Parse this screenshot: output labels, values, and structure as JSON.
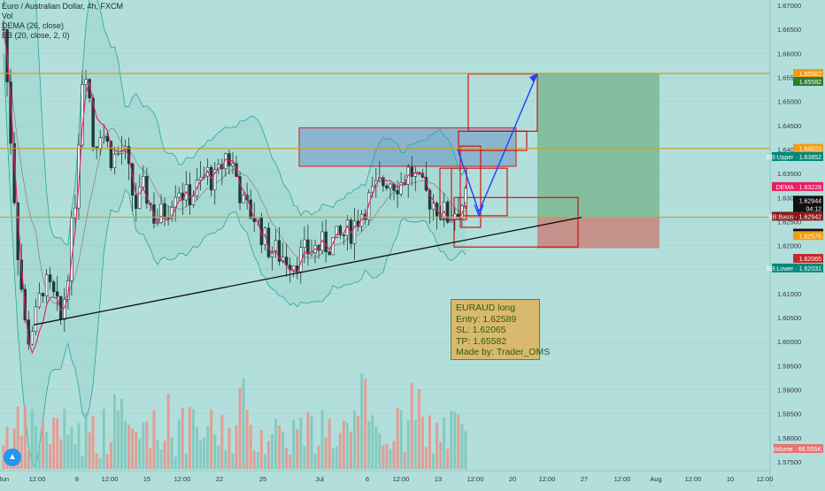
{
  "header": {
    "symbol": "Euro / Australian Dollar, 4h, FXCM",
    "indicators": [
      "Vol",
      "DEMA (26, close)",
      "BB (20, close, 2, 0)"
    ]
  },
  "annotation": {
    "lines": [
      "EURAUD long",
      "Entry: 1.62589",
      "SL: 1.62065",
      "TP: 1.65582",
      "Made by: Trader_OMS"
    ]
  },
  "colors": {
    "background": "#b2dfdb",
    "level_line": "#c9a227",
    "candle": "#1f3a36",
    "bb_band": "#26a69a",
    "dema": "#e91e63",
    "zone_border": "#d50000",
    "supply_zone_fill": "#7fa8cc",
    "target_fill": "#7ab893",
    "stop_fill": "#c7857d",
    "arrow": "#1e40ff",
    "vol_up": "#7ec8bd",
    "vol_down": "#e8968d"
  },
  "chart_data": {
    "type": "candlestick",
    "symbol": "EURAUD",
    "timeframe": "4h",
    "ylim": [
      1.5725,
      1.6725
    ],
    "y_ticks": [
      1.575,
      1.58,
      1.585,
      1.59,
      1.595,
      1.6,
      1.605,
      1.61,
      1.615,
      1.62,
      1.625,
      1.63,
      1.635,
      1.64,
      1.645,
      1.65,
      1.655,
      1.66,
      1.665,
      1.67
    ],
    "x_ticks": [
      {
        "label": "Jun",
        "px": 4
      },
      {
        "label": "12:00",
        "px": 42
      },
      {
        "label": "8",
        "px": 87
      },
      {
        "label": "12:00",
        "px": 124
      },
      {
        "label": "15",
        "px": 166
      },
      {
        "label": "12:00",
        "px": 206
      },
      {
        "label": "22",
        "px": 248
      },
      {
        "label": "25",
        "px": 297
      },
      {
        "label": "Jul",
        "px": 361
      },
      {
        "label": "6",
        "px": 415
      },
      {
        "label": "12:00",
        "px": 453
      },
      {
        "label": "13",
        "px": 495
      },
      {
        "label": "12:00",
        "px": 537
      },
      {
        "label": "20",
        "px": 579
      },
      {
        "label": "12:00",
        "px": 618
      },
      {
        "label": "27",
        "px": 660
      },
      {
        "label": "12:00",
        "px": 703
      },
      {
        "label": "Aug",
        "px": 741
      },
      {
        "label": "12:00",
        "px": 783
      },
      {
        "label": "10",
        "px": 825
      },
      {
        "label": "12:00",
        "px": 864
      }
    ],
    "price_path": [
      [
        0,
        1.665
      ],
      [
        0.012,
        1.648
      ],
      [
        0.03,
        1.62
      ],
      [
        0.05,
        1.6
      ],
      [
        0.07,
        1.605
      ],
      [
        0.085,
        1.612
      ],
      [
        0.105,
        1.61
      ],
      [
        0.125,
        1.604
      ],
      [
        0.14,
        1.616
      ],
      [
        0.155,
        1.63
      ],
      [
        0.17,
        1.655
      ],
      [
        0.18,
        1.658
      ],
      [
        0.195,
        1.64
      ],
      [
        0.21,
        1.645
      ],
      [
        0.235,
        1.638
      ],
      [
        0.26,
        1.64
      ],
      [
        0.285,
        1.628
      ],
      [
        0.305,
        1.632
      ],
      [
        0.33,
        1.625
      ],
      [
        0.355,
        1.628
      ],
      [
        0.375,
        1.633
      ],
      [
        0.395,
        1.63
      ],
      [
        0.42,
        1.632
      ],
      [
        0.44,
        1.635
      ],
      [
        0.46,
        1.633
      ],
      [
        0.48,
        1.639
      ],
      [
        0.5,
        1.636
      ],
      [
        0.52,
        1.628
      ],
      [
        0.545,
        1.626
      ],
      [
        0.57,
        1.62
      ],
      [
        0.6,
        1.618
      ],
      [
        0.63,
        1.617
      ],
      [
        0.66,
        1.619
      ],
      [
        0.69,
        1.62
      ],
      [
        0.72,
        1.621
      ],
      [
        0.75,
        1.623
      ],
      [
        0.78,
        1.628
      ],
      [
        0.81,
        1.632
      ],
      [
        0.83,
        1.634
      ],
      [
        0.86,
        1.633
      ],
      [
        0.88,
        1.636
      ],
      [
        0.9,
        1.632
      ],
      [
        0.93,
        1.629
      ],
      [
        0.96,
        1.626
      ],
      [
        1.0,
        1.6294
      ]
    ],
    "levels": [
      {
        "name": "tp-level",
        "value": 1.65582
      },
      {
        "name": "resistance-level",
        "value": 1.64023
      },
      {
        "name": "entry-level",
        "value": 1.62589
      }
    ],
    "trendline": {
      "from": [
        "Jun 4",
        1.6035
      ],
      "to": [
        "Jul 16",
        1.62589
      ]
    },
    "projection_arrow": [
      [
        1.64,
        1.6385
      ],
      [
        1.627,
        1.6263
      ],
      [
        1.6558,
        1.6558
      ]
    ],
    "trade": {
      "direction": "long",
      "entry": 1.62589,
      "stop_loss": 1.62065,
      "take_profit": 1.65582
    },
    "price_labels": [
      {
        "text": "1.65582",
        "value": 1.65582,
        "color": "#f39c12"
      },
      {
        "text": "1.65582",
        "value": 1.65582,
        "color": "#2e7d32",
        "offset": 9
      },
      {
        "text": "1.64023",
        "value": 1.64023,
        "color": "#f39c12"
      },
      {
        "text": "BB:Upper · 1.63852",
        "value": 1.63852,
        "color": "#00897b"
      },
      {
        "text": "DEMA · 1.63228",
        "value": 1.63228,
        "color": "#e91e63"
      },
      {
        "text": "1.62944",
        "value": 1.62944,
        "color": "#111111"
      },
      {
        "text": "04:12",
        "value": 1.62944,
        "color": "#111111",
        "offset": 9
      },
      {
        "text": "BB:Basis · 1.62942",
        "value": 1.62942,
        "color": "#8b1a1a",
        "offset": 18
      },
      {
        "text": "1.62589",
        "value": 1.62589,
        "color": "#111111",
        "offset": 18
      },
      {
        "text": "1.62576",
        "value": 1.62576,
        "color": "#f39c12",
        "offset": 20
      },
      {
        "text": "1.62065",
        "value": 1.62065,
        "color": "#c62828",
        "offset": 18
      },
      {
        "text": "BB:Lower · 1.62031",
        "value": 1.62031,
        "color": "#00897b",
        "offset": 27
      }
    ],
    "volume_label": "Volume · 66.555K"
  }
}
